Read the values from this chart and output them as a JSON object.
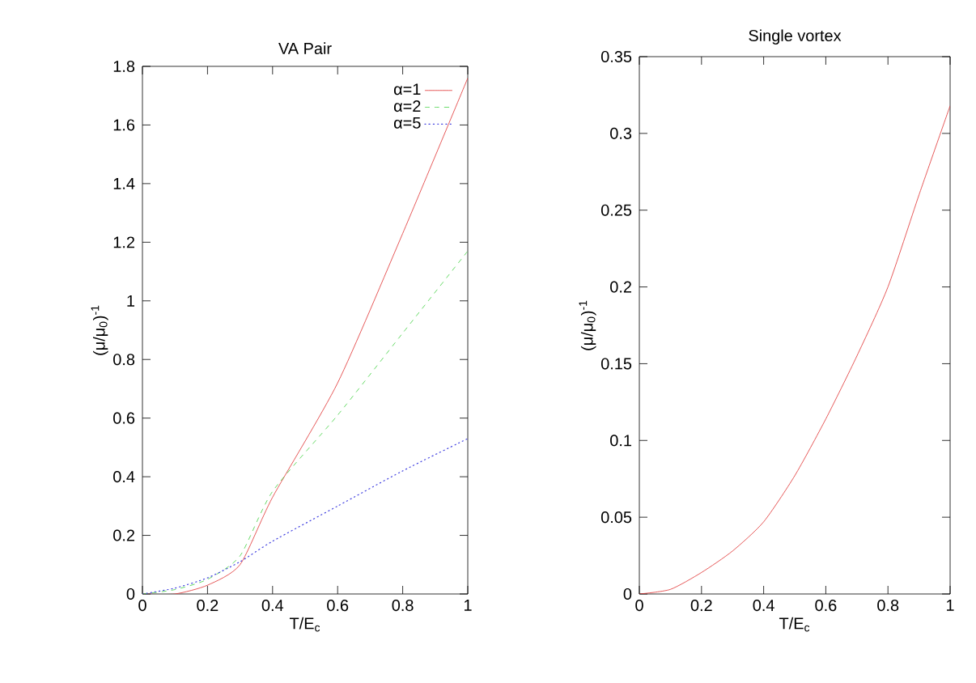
{
  "chart_data": [
    {
      "type": "line",
      "title": "VA Pair",
      "xlabel": "T/E$_{c}$",
      "ylabel": "(μ/μ$_{0}$)$^{-1}$",
      "x": [
        0,
        0.1,
        0.2,
        0.3,
        0.4,
        0.6,
        0.8,
        1.0
      ],
      "xlim": [
        0,
        1
      ],
      "ylim": [
        0,
        1.8
      ],
      "xticks": [
        0,
        0.2,
        0.4,
        0.6,
        0.8,
        1
      ],
      "yticks": [
        0,
        0.2,
        0.4,
        0.6,
        0.8,
        1,
        1.2,
        1.4,
        1.6,
        1.8
      ],
      "legend": "top right",
      "grid": false,
      "marker": "none",
      "series": [
        {
          "name": "α=1",
          "color": "#e03030",
          "line_style": "solid",
          "values": [
            0,
            0,
            0.03,
            0.1,
            0.33,
            0.72,
            1.23,
            1.76
          ]
        },
        {
          "name": "α=2",
          "color": "#40d040",
          "line_style": "dashed",
          "values": [
            0,
            0.015,
            0.05,
            0.13,
            0.35,
            0.61,
            0.89,
            1.17
          ]
        },
        {
          "name": "α=5",
          "color": "#4040e0",
          "line_style": "dotted",
          "values": [
            0,
            0.02,
            0.055,
            0.11,
            0.18,
            0.3,
            0.42,
            0.53
          ]
        }
      ]
    },
    {
      "type": "line",
      "title": "Single vortex",
      "xlabel": "T/E$_{c}$",
      "ylabel": "(μ/μ$_{0}$)$^{-1}$",
      "x": [
        0,
        0.1,
        0.2,
        0.3,
        0.4,
        0.5,
        0.6,
        0.7,
        0.8,
        0.9,
        1.0
      ],
      "xlim": [
        0,
        1
      ],
      "ylim": [
        0,
        0.35
      ],
      "xticks": [
        0,
        0.2,
        0.4,
        0.6,
        0.8,
        1
      ],
      "yticks": [
        0,
        0.05,
        0.1,
        0.15,
        0.2,
        0.25,
        0.3,
        0.35
      ],
      "legend": false,
      "grid": false,
      "marker": "none",
      "series": [
        {
          "color": "#e03030",
          "line_style": "solid",
          "values": [
            0,
            0.003,
            0.014,
            0.028,
            0.047,
            0.077,
            0.114,
            0.155,
            0.2,
            0.26,
            0.318
          ]
        }
      ]
    }
  ]
}
